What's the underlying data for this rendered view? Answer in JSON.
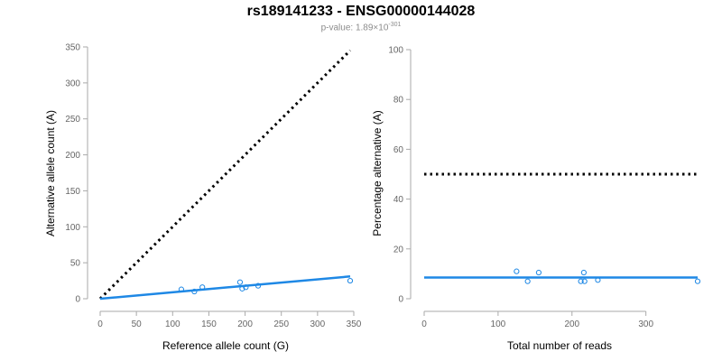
{
  "figure": {
    "title": "rs189141233 - ENSG00000144028",
    "pvalue_prefix": "p-value: 1.89×10",
    "pvalue_exponent": "-301"
  },
  "colors": {
    "points": "#1e88e5",
    "fit_line": "#1e88e5",
    "reference_line": "#000000",
    "axis": "#aaaaaa",
    "tick_text": "#666666"
  },
  "chart_data": [
    {
      "type": "scatter",
      "xlabel": "Reference allele count (G)",
      "ylabel": "Alternative allele count (A)",
      "xlim": [
        0,
        350
      ],
      "ylim": [
        0,
        350
      ],
      "xticks": [
        0,
        50,
        100,
        150,
        200,
        250,
        300,
        350
      ],
      "yticks": [
        0,
        50,
        100,
        150,
        200,
        250,
        300,
        350
      ],
      "points": [
        {
          "x": 112,
          "y": 13
        },
        {
          "x": 130,
          "y": 10
        },
        {
          "x": 141,
          "y": 16
        },
        {
          "x": 193,
          "y": 23
        },
        {
          "x": 196,
          "y": 14
        },
        {
          "x": 201,
          "y": 16
        },
        {
          "x": 218,
          "y": 18
        },
        {
          "x": 345,
          "y": 25
        }
      ],
      "fit_line": [
        [
          0,
          0
        ],
        [
          345,
          31
        ]
      ],
      "reference_line": [
        [
          0,
          0
        ],
        [
          345,
          345
        ]
      ]
    },
    {
      "type": "scatter",
      "xlabel": "Total number of reads",
      "ylabel": "Percentage alternative (A)",
      "xlim": [
        0,
        370
      ],
      "ylim": [
        0,
        100
      ],
      "xticks": [
        0,
        100,
        200,
        300
      ],
      "yticks": [
        0,
        20,
        40,
        60,
        80,
        100
      ],
      "points": [
        {
          "x": 125,
          "y": 11
        },
        {
          "x": 140,
          "y": 7
        },
        {
          "x": 155,
          "y": 10.5
        },
        {
          "x": 212,
          "y": 7
        },
        {
          "x": 216,
          "y": 10.5
        },
        {
          "x": 217,
          "y": 7
        },
        {
          "x": 235,
          "y": 7.5
        },
        {
          "x": 370,
          "y": 7
        }
      ],
      "fit_line": [
        [
          0,
          8.5
        ],
        [
          370,
          8.5
        ]
      ],
      "reference_line": [
        [
          0,
          50
        ],
        [
          370,
          50
        ]
      ]
    }
  ]
}
